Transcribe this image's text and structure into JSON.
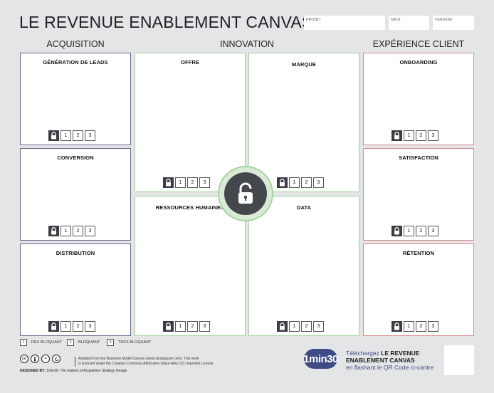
{
  "header": {
    "title": "LE REVENUE ENABLEMENT CANVAS",
    "fields": {
      "projet": "PROJET",
      "date": "DATE",
      "version": "VERSION"
    }
  },
  "sections": {
    "acquisition": "ACQUISITION",
    "innovation": "INNOVATION",
    "experience": "EXPÉRIENCE CLIENT"
  },
  "boxes": {
    "generation_leads": "GÉNÉRATION DE LEADS",
    "conversion": "CONVERSION",
    "distribution": "DISTRIBUTION",
    "offre": "OFFRE",
    "marque": "MARQUE",
    "ressources_humaines": "RESSOURCES HUMAINES",
    "data": "DATA",
    "onboarding": "ONBOARDING",
    "satisfaction": "SATISFACTION",
    "retention": "RÉTENTION"
  },
  "scale": {
    "n1": "1",
    "n2": "2",
    "n3": "3"
  },
  "legend": {
    "l1_num": "1",
    "l1_label": "PEU BLOQUANT",
    "l2_num": "2",
    "l2_label": "BLOQUANT",
    "l3_num": "3",
    "l3_label": "TRÈS BLOQUANT"
  },
  "footer": {
    "license_line1": "Adapted from the Business Model Canvas (www.strategyzer.com). This work",
    "license_line2": "is licensed under the Creative Commons Attribution-Share Alike 3.0 Unported License.",
    "designed_by_label": "DESIGNED BY:",
    "designed_by_text": " 1min30, The makers of Acquisition Strategy Design",
    "logo_text": "1min30",
    "download_line1_pre": "Téléchargez ",
    "download_line1_bold": "LE REVENUE",
    "download_line2_bold": "ENABLEMENT CANVAS",
    "download_line3": "en flashant le QR Code ci-contre"
  },
  "colors": {
    "acquisition": "#6b6790",
    "innovation": "#9fd39a",
    "experience": "#d88b8b",
    "dark": "#3a3d42",
    "brand": "#3e4a86"
  },
  "icons": {
    "lock": "lock-icon",
    "unlock": "unlock-icon",
    "cc": "creative-commons-icon"
  }
}
